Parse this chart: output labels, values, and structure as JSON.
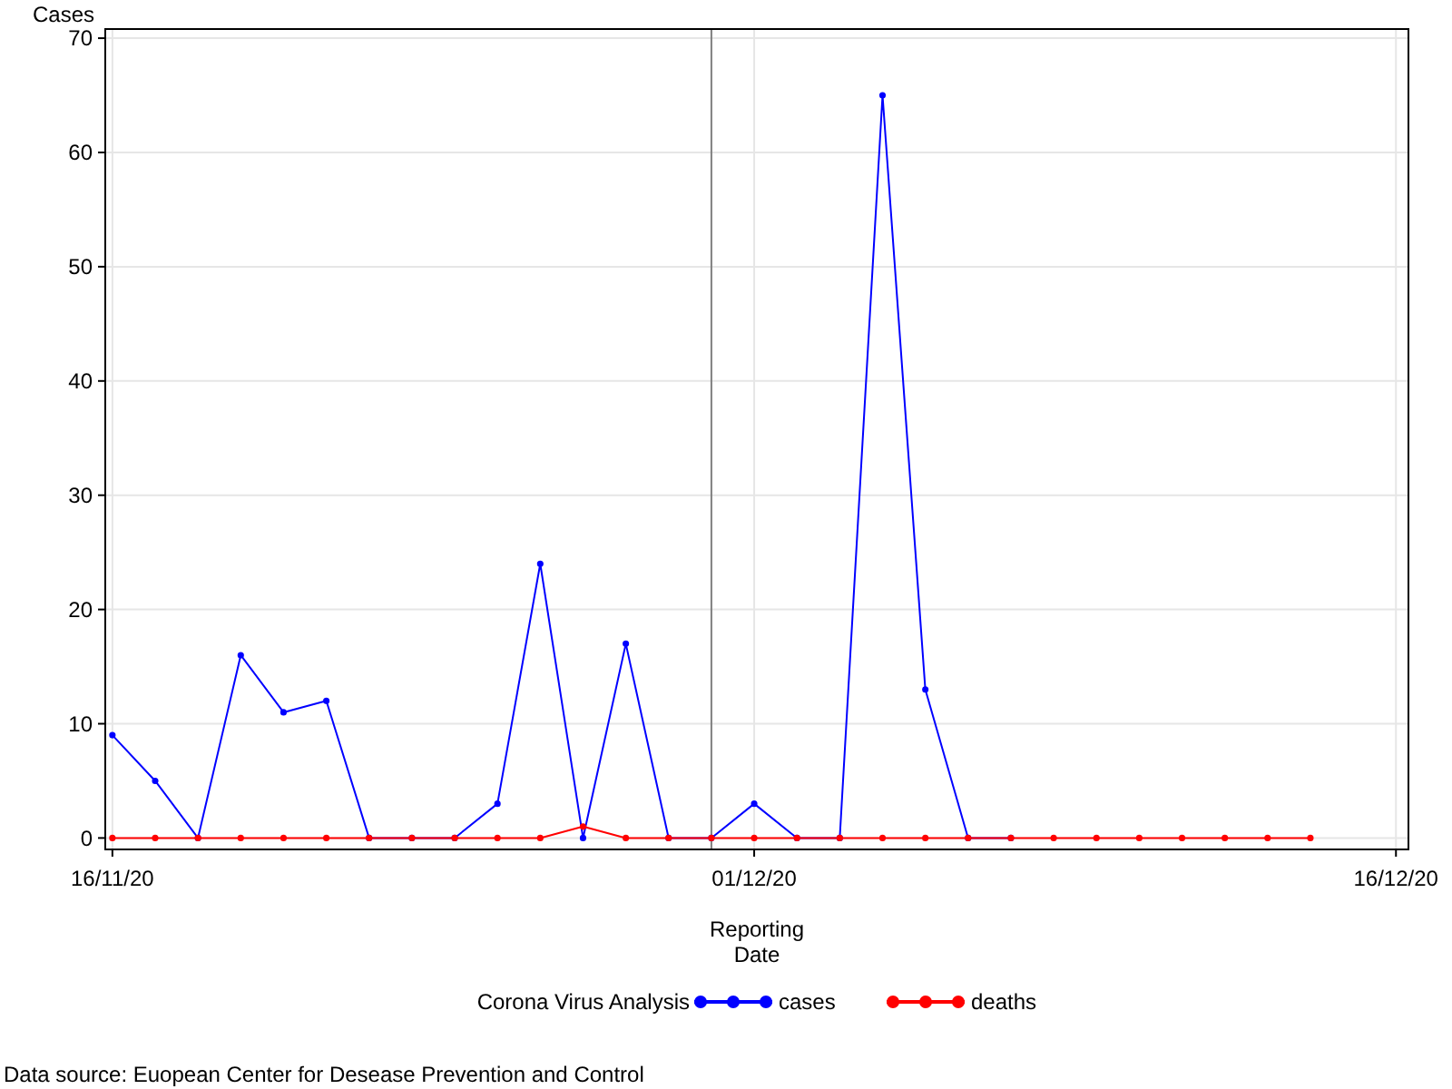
{
  "chart_data": {
    "type": "line",
    "ylabel": "Cases",
    "xlabel": "Reporting\nDate",
    "legend_title": "Corona Virus Analysis",
    "legend": "bottom",
    "grid": true,
    "marker": "circle",
    "line_style": "solid",
    "x": [
      "2020-11-16",
      "2020-11-17",
      "2020-11-18",
      "2020-11-19",
      "2020-11-20",
      "2020-11-21",
      "2020-11-22",
      "2020-11-23",
      "2020-11-24",
      "2020-11-25",
      "2020-11-26",
      "2020-11-27",
      "2020-11-28",
      "2020-11-29",
      "2020-11-30",
      "2020-12-01",
      "2020-12-02",
      "2020-12-03",
      "2020-12-04",
      "2020-12-05",
      "2020-12-06",
      "2020-12-07",
      "2020-12-08",
      "2020-12-09",
      "2020-12-10",
      "2020-12-11",
      "2020-12-12",
      "2020-12-13",
      "2020-12-14"
    ],
    "series": [
      {
        "name": "cases",
        "color": "#0000ff",
        "values": [
          9,
          5,
          0,
          16,
          11,
          12,
          0,
          0,
          0,
          3,
          24,
          0,
          17,
          0,
          0,
          3,
          0,
          0,
          65,
          13,
          0,
          0,
          null,
          null,
          null,
          null,
          null,
          null,
          null
        ]
      },
      {
        "name": "deaths",
        "color": "#ff0000",
        "values": [
          0,
          0,
          0,
          0,
          0,
          0,
          0,
          0,
          0,
          0,
          0,
          1,
          0,
          0,
          0,
          0,
          0,
          0,
          0,
          0,
          0,
          0,
          0,
          0,
          0,
          0,
          0,
          0,
          0
        ]
      }
    ],
    "xlim": [
      "2020-11-15T20:00",
      "2020-12-16T07:00"
    ],
    "xticks": [
      {
        "value": "2020-11-16",
        "label": "16/11/20"
      },
      {
        "value": "2020-12-01",
        "label": "01/12/20"
      },
      {
        "value": "2020-12-16",
        "label": "16/12/20"
      }
    ],
    "ylim": [
      -1,
      70.8
    ],
    "yticks": [
      0,
      10,
      20,
      30,
      40,
      50,
      60,
      70
    ],
    "ref_lines": [
      {
        "axis": "x",
        "value": "2020-11-30",
        "color": "#808080"
      }
    ],
    "annotations": [
      "Data source: Euopean Center for Desease Prevention and Control"
    ]
  }
}
